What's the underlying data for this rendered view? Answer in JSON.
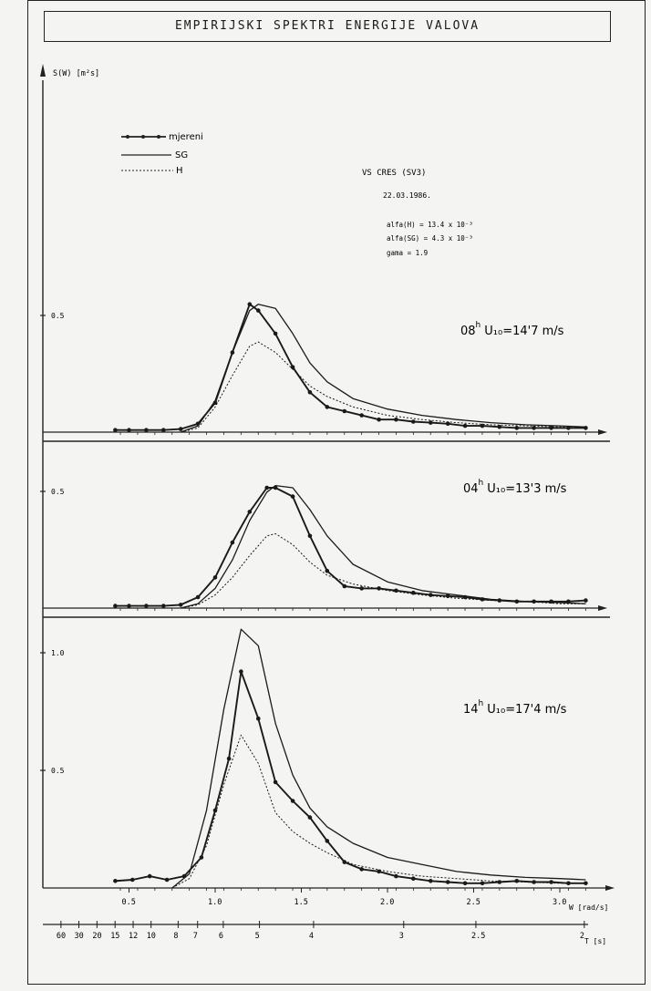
{
  "title": "EMPIRIJSKI SPEKTRI ENERGIJE VALOVA",
  "y_axis_label": "S(W) [m²s]",
  "legend": [
    "mjereni",
    "SG",
    "H"
  ],
  "station": "VS CRES (SV3)",
  "date": "22.03.1986.",
  "params": [
    "alfa(H)  = 13.4 x 10⁻³",
    "alfa(SG) =  4.3 x 10⁻³",
    "gama     = 1.9"
  ],
  "x_axis_label": "W [rad/s]",
  "t_axis_label": "T [s]",
  "x_ticks": [
    "0.5",
    "1.0",
    "1.5",
    "2.0",
    "2.5",
    "3.0"
  ],
  "t_ticks": [
    {
      "label": "60",
      "w": 0.105
    },
    {
      "label": "30",
      "w": 0.209
    },
    {
      "label": "20",
      "w": 0.314
    },
    {
      "label": "15",
      "w": 0.419
    },
    {
      "label": "12",
      "w": 0.524
    },
    {
      "label": "10",
      "w": 0.628
    },
    {
      "label": "8",
      "w": 0.785
    },
    {
      "label": "7",
      "w": 0.898
    },
    {
      "label": "6",
      "w": 1.047
    },
    {
      "label": "5",
      "w": 1.257
    },
    {
      "label": "4",
      "w": 1.571
    },
    {
      "label": "3",
      "w": 2.094
    },
    {
      "label": "2.5",
      "w": 2.513
    },
    {
      "label": "2",
      "w": 3.142
    }
  ],
  "colors": {
    "ink": "#1a1a1a",
    "paper": "#f4f4f2"
  },
  "chart_data": [
    {
      "type": "line",
      "label_hour": "08",
      "label_sup": "h",
      "label_wind": "U₁₀=14'7 m/s",
      "y_tick_labels": [
        "0.5"
      ],
      "ylim": [
        0,
        0.75
      ],
      "series": [
        {
          "name": "mjereni",
          "style": "solid-marker",
          "x": [
            0.42,
            0.5,
            0.6,
            0.7,
            0.8,
            0.9,
            1.0,
            1.1,
            1.2,
            1.25,
            1.35,
            1.45,
            1.55,
            1.65,
            1.75,
            1.85,
            1.95,
            2.05,
            2.15,
            2.25,
            2.35,
            2.45,
            2.55,
            2.65,
            2.75,
            2.85,
            2.95,
            3.05,
            3.15
          ],
          "y": [
            0.01,
            0.01,
            0.01,
            0.01,
            0.015,
            0.04,
            0.14,
            0.38,
            0.61,
            0.58,
            0.47,
            0.31,
            0.19,
            0.12,
            0.1,
            0.08,
            0.06,
            0.06,
            0.05,
            0.045,
            0.04,
            0.03,
            0.03,
            0.025,
            0.02,
            0.02,
            0.02,
            0.02,
            0.02
          ]
        },
        {
          "name": "SG",
          "style": "solid",
          "x": [
            0.8,
            0.9,
            1.0,
            1.1,
            1.2,
            1.25,
            1.35,
            1.45,
            1.55,
            1.65,
            1.8,
            2.0,
            2.2,
            2.4,
            2.6,
            2.8,
            3.0,
            3.15
          ],
          "y": [
            0.0,
            0.03,
            0.15,
            0.38,
            0.58,
            0.61,
            0.59,
            0.47,
            0.33,
            0.24,
            0.16,
            0.11,
            0.08,
            0.06,
            0.045,
            0.035,
            0.03,
            0.025
          ]
        },
        {
          "name": "H",
          "style": "dashed",
          "x": [
            0.8,
            0.9,
            1.0,
            1.1,
            1.2,
            1.25,
            1.35,
            1.45,
            1.55,
            1.65,
            1.8,
            2.0,
            2.2,
            2.4,
            2.6,
            2.8,
            3.0,
            3.15
          ],
          "y": [
            0.0,
            0.02,
            0.12,
            0.27,
            0.41,
            0.43,
            0.38,
            0.3,
            0.22,
            0.17,
            0.12,
            0.08,
            0.06,
            0.045,
            0.035,
            0.03,
            0.025,
            0.02
          ]
        }
      ]
    },
    {
      "type": "line",
      "label_hour": "04",
      "label_sup": "h",
      "label_wind": "U₁₀=13'3 m/s",
      "y_tick_labels": [
        "0.5"
      ],
      "ylim": [
        0,
        0.75
      ],
      "series": [
        {
          "name": "mjereni",
          "style": "solid-marker",
          "x": [
            0.42,
            0.5,
            0.6,
            0.7,
            0.8,
            0.9,
            1.0,
            1.1,
            1.2,
            1.3,
            1.35,
            1.45,
            1.55,
            1.65,
            1.75,
            1.85,
            1.95,
            2.05,
            2.15,
            2.25,
            2.35,
            2.45,
            2.55,
            2.65,
            2.75,
            2.85,
            2.95,
            3.05,
            3.15
          ],
          "y": [
            0.01,
            0.01,
            0.01,
            0.01,
            0.015,
            0.05,
            0.14,
            0.3,
            0.44,
            0.55,
            0.55,
            0.51,
            0.33,
            0.17,
            0.1,
            0.09,
            0.09,
            0.08,
            0.07,
            0.06,
            0.055,
            0.05,
            0.04,
            0.035,
            0.03,
            0.03,
            0.03,
            0.03,
            0.035
          ]
        },
        {
          "name": "SG",
          "style": "solid",
          "x": [
            0.8,
            0.9,
            1.0,
            1.1,
            1.2,
            1.3,
            1.35,
            1.45,
            1.55,
            1.65,
            1.8,
            2.0,
            2.2,
            2.4,
            2.6,
            2.8,
            3.0,
            3.15
          ],
          "y": [
            0.0,
            0.02,
            0.09,
            0.22,
            0.4,
            0.53,
            0.56,
            0.55,
            0.45,
            0.33,
            0.2,
            0.12,
            0.08,
            0.06,
            0.04,
            0.03,
            0.025,
            0.02
          ]
        },
        {
          "name": "H",
          "style": "dashed",
          "x": [
            0.8,
            0.9,
            1.0,
            1.1,
            1.2,
            1.3,
            1.35,
            1.45,
            1.55,
            1.65,
            1.8,
            2.0,
            2.2,
            2.4,
            2.6,
            2.8,
            3.0,
            3.15
          ],
          "y": [
            0.0,
            0.015,
            0.06,
            0.14,
            0.24,
            0.33,
            0.34,
            0.29,
            0.21,
            0.15,
            0.11,
            0.08,
            0.06,
            0.045,
            0.035,
            0.03,
            0.02,
            0.02
          ]
        }
      ]
    },
    {
      "type": "line",
      "label_hour": "14",
      "label_sup": "h",
      "label_wind": "U₁₀=17'4 m/s",
      "y_tick_labels": [
        "1.0",
        "0.5"
      ],
      "ylim": [
        0,
        1.12
      ],
      "series": [
        {
          "name": "mjereni",
          "style": "solid-marker",
          "x": [
            0.42,
            0.52,
            0.62,
            0.72,
            0.82,
            0.92,
            1.0,
            1.08,
            1.15,
            1.25,
            1.35,
            1.45,
            1.55,
            1.65,
            1.75,
            1.85,
            1.95,
            2.05,
            2.15,
            2.25,
            2.35,
            2.45,
            2.55,
            2.65,
            2.75,
            2.85,
            2.95,
            3.05,
            3.15
          ],
          "y": [
            0.03,
            0.035,
            0.05,
            0.035,
            0.05,
            0.13,
            0.33,
            0.55,
            0.92,
            0.72,
            0.45,
            0.37,
            0.3,
            0.2,
            0.11,
            0.08,
            0.07,
            0.05,
            0.04,
            0.03,
            0.025,
            0.02,
            0.02,
            0.025,
            0.03,
            0.025,
            0.025,
            0.02,
            0.02
          ]
        },
        {
          "name": "SG",
          "style": "solid",
          "x": [
            0.75,
            0.85,
            0.95,
            1.05,
            1.15,
            1.25,
            1.35,
            1.45,
            1.55,
            1.65,
            1.8,
            2.0,
            2.2,
            2.4,
            2.6,
            2.8,
            3.0,
            3.15
          ],
          "y": [
            0.0,
            0.06,
            0.33,
            0.76,
            1.1,
            1.03,
            0.7,
            0.48,
            0.34,
            0.26,
            0.19,
            0.13,
            0.1,
            0.07,
            0.055,
            0.045,
            0.04,
            0.035
          ]
        },
        {
          "name": "H",
          "style": "dashed",
          "x": [
            0.75,
            0.85,
            0.95,
            1.05,
            1.15,
            1.25,
            1.35,
            1.45,
            1.55,
            1.65,
            1.8,
            2.0,
            2.2,
            2.4,
            2.6,
            2.8,
            3.0,
            3.15
          ],
          "y": [
            0.0,
            0.04,
            0.18,
            0.44,
            0.65,
            0.53,
            0.32,
            0.24,
            0.19,
            0.15,
            0.1,
            0.07,
            0.05,
            0.04,
            0.03,
            0.025,
            0.02,
            0.02
          ]
        }
      ]
    }
  ]
}
